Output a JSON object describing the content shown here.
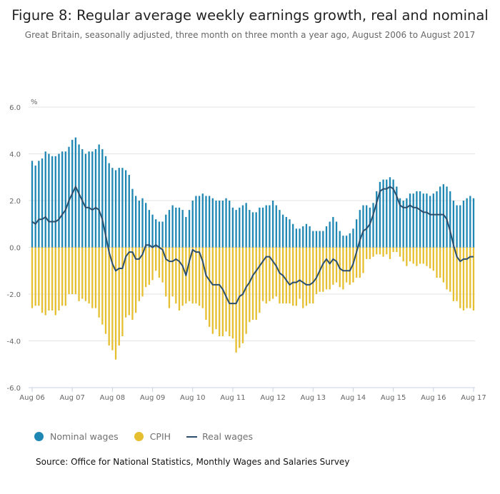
{
  "title": "Figure 8: Regular average weekly earnings growth, real and nominal",
  "subtitle": "Great Britain, seasonally adjusted, three month on three month a year ago, August 2006 to August 2017",
  "source": "Source: Office for National Statistics, Monthly Wages and Salaries Survey",
  "legend": {
    "nominal": "Nominal wages",
    "cpih": "CPIH",
    "real": "Real wages"
  },
  "colors": {
    "nominal": "#1f87b3",
    "cpih": "#e5bf30",
    "real": "#2c4e6c",
    "grid": "#e3e3e3"
  },
  "chart_data": {
    "type": "bar+line",
    "ylabel": "%",
    "ylim": [
      -6,
      6
    ],
    "yticks": [
      "6.0",
      "4.0",
      "2.0",
      "0.0",
      "-2.0",
      "-4.0",
      "-6.0"
    ],
    "ytick_values": [
      6,
      4,
      2,
      0,
      -2,
      -4,
      -6
    ],
    "xticks": [
      "Aug 06",
      "Aug 07",
      "Aug 08",
      "Aug 09",
      "Aug 10",
      "Aug 11",
      "Aug 12",
      "Aug 13",
      "Aug 14",
      "Aug 15",
      "Aug 16",
      "Aug 17"
    ],
    "frequency": "monthly",
    "grid": true,
    "legend_position": "bottom-left",
    "series": [
      {
        "name": "Nominal wages",
        "type": "bar",
        "values": [
          3.7,
          3.5,
          3.7,
          3.8,
          4.1,
          4.0,
          3.9,
          3.9,
          4.0,
          4.1,
          4.1,
          4.3,
          4.6,
          4.7,
          4.4,
          4.2,
          4.0,
          4.1,
          4.1,
          4.2,
          4.4,
          4.2,
          3.9,
          3.6,
          3.4,
          3.3,
          3.4,
          3.4,
          3.3,
          3.1,
          2.5,
          2.2,
          2.0,
          2.1,
          1.9,
          1.6,
          1.4,
          1.2,
          1.1,
          1.1,
          1.4,
          1.6,
          1.8,
          1.7,
          1.7,
          1.6,
          1.3,
          1.6,
          2.0,
          2.2,
          2.2,
          2.3,
          2.2,
          2.2,
          2.1,
          2.0,
          2.0,
          2.0,
          2.1,
          2.0,
          1.7,
          1.6,
          1.7,
          1.8,
          1.9,
          1.6,
          1.5,
          1.5,
          1.7,
          1.7,
          1.8,
          1.8,
          2.0,
          1.8,
          1.6,
          1.4,
          1.3,
          1.2,
          1.0,
          0.8,
          0.8,
          0.9,
          1.0,
          0.9,
          0.7,
          0.7,
          0.7,
          0.7,
          0.9,
          1.1,
          1.3,
          1.1,
          0.7,
          0.5,
          0.5,
          0.6,
          0.8,
          1.2,
          1.6,
          1.8,
          1.8,
          1.7,
          1.9,
          2.4,
          2.8,
          2.9,
          2.9,
          3.0,
          2.9,
          2.6,
          2.1,
          2.0,
          2.1,
          2.3,
          2.3,
          2.4,
          2.4,
          2.3,
          2.3,
          2.2,
          2.3,
          2.4,
          2.6,
          2.7,
          2.6,
          2.4,
          2.0,
          1.8,
          1.8,
          2.0,
          2.1,
          2.2,
          2.1
        ]
      },
      {
        "name": "CPIH",
        "type": "bar",
        "values": [
          -2.6,
          -2.5,
          -2.5,
          -2.8,
          -2.9,
          -2.7,
          -2.7,
          -2.9,
          -2.7,
          -2.5,
          -2.5,
          -2.0,
          -2.0,
          -2.0,
          -2.3,
          -2.2,
          -2.3,
          -2.4,
          -2.6,
          -2.6,
          -3.0,
          -3.3,
          -3.7,
          -4.2,
          -4.4,
          -4.8,
          -4.2,
          -3.8,
          -3.0,
          -2.9,
          -3.1,
          -2.8,
          -2.3,
          -2.1,
          -1.7,
          -1.6,
          -1.4,
          -1.0,
          -1.3,
          -1.5,
          -2.1,
          -2.6,
          -2.1,
          -2.4,
          -2.7,
          -2.5,
          -2.4,
          -2.3,
          -2.4,
          -2.4,
          -2.5,
          -2.6,
          -3.1,
          -3.4,
          -3.7,
          -3.5,
          -3.8,
          -3.8,
          -3.6,
          -3.8,
          -3.9,
          -4.5,
          -4.3,
          -4.1,
          -3.7,
          -3.2,
          -3.1,
          -3.1,
          -2.8,
          -2.3,
          -2.4,
          -2.3,
          -2.2,
          -2.1,
          -2.4,
          -2.4,
          -2.4,
          -2.4,
          -2.5,
          -2.5,
          -2.2,
          -2.6,
          -2.5,
          -2.4,
          -2.4,
          -2.0,
          -1.9,
          -1.9,
          -1.8,
          -1.8,
          -1.6,
          -1.5,
          -1.7,
          -1.8,
          -1.5,
          -1.6,
          -1.5,
          -1.3,
          -1.3,
          -1.1,
          -0.5,
          -0.5,
          -0.4,
          -0.3,
          -0.3,
          -0.4,
          -0.3,
          -0.5,
          -0.2,
          -0.2,
          -0.4,
          -0.6,
          -0.8,
          -0.6,
          -0.7,
          -0.8,
          -0.7,
          -0.7,
          -0.8,
          -0.9,
          -1.0,
          -1.3,
          -1.3,
          -1.5,
          -1.8,
          -1.9,
          -2.3,
          -2.3,
          -2.6,
          -2.7,
          -2.6,
          -2.6,
          -2.7
        ]
      },
      {
        "name": "Real wages",
        "type": "line",
        "values": [
          1.1,
          1.0,
          1.2,
          1.2,
          1.3,
          1.1,
          1.1,
          1.1,
          1.2,
          1.4,
          1.6,
          2.0,
          2.3,
          2.6,
          2.3,
          2.0,
          1.7,
          1.7,
          1.6,
          1.7,
          1.6,
          1.2,
          0.5,
          -0.2,
          -0.7,
          -1.0,
          -0.9,
          -0.9,
          -0.4,
          -0.2,
          -0.2,
          -0.5,
          -0.5,
          -0.3,
          0.1,
          0.1,
          0.0,
          0.1,
          0.0,
          -0.1,
          -0.5,
          -0.6,
          -0.6,
          -0.5,
          -0.6,
          -0.8,
          -1.2,
          -0.6,
          -0.1,
          -0.2,
          -0.2,
          -0.6,
          -1.2,
          -1.4,
          -1.6,
          -1.6,
          -1.6,
          -1.8,
          -2.1,
          -2.4,
          -2.4,
          -2.4,
          -2.1,
          -2.0,
          -1.7,
          -1.5,
          -1.2,
          -1.0,
          -0.8,
          -0.6,
          -0.4,
          -0.4,
          -0.6,
          -0.8,
          -1.1,
          -1.2,
          -1.4,
          -1.6,
          -1.5,
          -1.5,
          -1.4,
          -1.5,
          -1.6,
          -1.6,
          -1.5,
          -1.3,
          -1.0,
          -0.7,
          -0.5,
          -0.7,
          -0.5,
          -0.6,
          -0.9,
          -1.0,
          -1.0,
          -1.0,
          -0.7,
          -0.2,
          0.3,
          0.7,
          0.8,
          1.0,
          1.4,
          1.9,
          2.4,
          2.5,
          2.5,
          2.6,
          2.5,
          2.2,
          1.8,
          1.7,
          1.7,
          1.8,
          1.7,
          1.7,
          1.6,
          1.5,
          1.5,
          1.4,
          1.4,
          1.4,
          1.4,
          1.4,
          1.2,
          0.7,
          0.1,
          -0.4,
          -0.6,
          -0.5,
          -0.5,
          -0.4,
          -0.4
        ]
      }
    ]
  }
}
